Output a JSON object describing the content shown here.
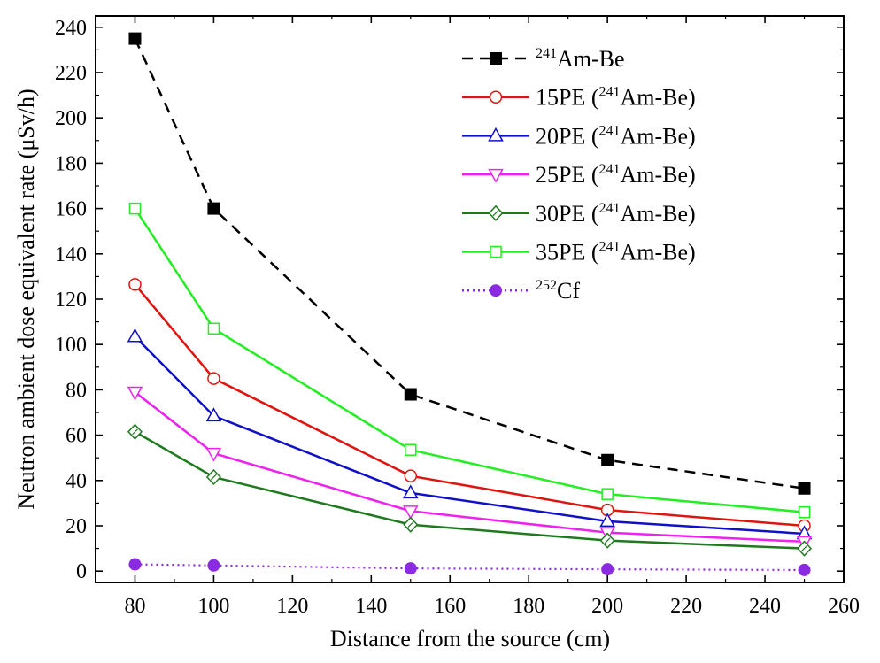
{
  "chart_data": {
    "type": "line",
    "xlabel": "Distance from the source (cm)",
    "ylabel": "Neutron ambient dose equivalent rate (μSv/h)",
    "xlim": [
      70,
      260
    ],
    "ylim": [
      -5,
      245
    ],
    "x_ticks": [
      80,
      100,
      120,
      140,
      160,
      180,
      200,
      220,
      240,
      260
    ],
    "y_ticks": [
      0,
      20,
      40,
      60,
      80,
      100,
      120,
      140,
      160,
      180,
      200,
      220,
      240
    ],
    "x": [
      80,
      100,
      150,
      200,
      250
    ],
    "legend_position": "top-right",
    "grid": false,
    "series": [
      {
        "name": "Am-Be",
        "name_sup": "241",
        "name_prefix": "",
        "name_suffix": "",
        "values": [
          235,
          160,
          78,
          49,
          36.5
        ],
        "color": "#000000",
        "marker": "filled-square",
        "line": "dashed"
      },
      {
        "name": "15PE (",
        "name_sup": "241",
        "name_prefix": "",
        "name_suffix": "Am-Be)",
        "values": [
          126.5,
          85,
          42,
          27,
          20
        ],
        "color": "#e0140f",
        "marker": "open-circle",
        "line": "solid"
      },
      {
        "name": "20PE (",
        "name_sup": "241",
        "name_prefix": "",
        "name_suffix": "Am-Be)",
        "values": [
          103.5,
          68.5,
          34.5,
          22,
          16.5
        ],
        "color": "#1010c8",
        "marker": "open-triangle-up",
        "line": "solid"
      },
      {
        "name": "25PE (",
        "name_sup": "241",
        "name_prefix": "",
        "name_suffix": "Am-Be)",
        "values": [
          79,
          52,
          26.5,
          17,
          13
        ],
        "color": "#f020f0",
        "marker": "open-triangle-down",
        "line": "solid"
      },
      {
        "name": "30PE (",
        "name_sup": "241",
        "name_prefix": "",
        "name_suffix": "Am-Be)",
        "values": [
          61.5,
          41.5,
          20.5,
          13.5,
          10
        ],
        "color": "#1f7a1f",
        "marker": "open-diamond",
        "line": "solid"
      },
      {
        "name": "35PE (",
        "name_sup": "241",
        "name_prefix": "",
        "name_suffix": "Am-Be)",
        "values": [
          160,
          107,
          53.5,
          34,
          26
        ],
        "color": "#22ee22",
        "marker": "open-square",
        "line": "solid"
      },
      {
        "name": "Cf",
        "name_sup": "252",
        "name_prefix": "",
        "name_suffix": "",
        "values": [
          3,
          2.5,
          1.2,
          0.8,
          0.5
        ],
        "color": "#8a2be2",
        "marker": "filled-circle",
        "line": "dotted"
      }
    ]
  }
}
